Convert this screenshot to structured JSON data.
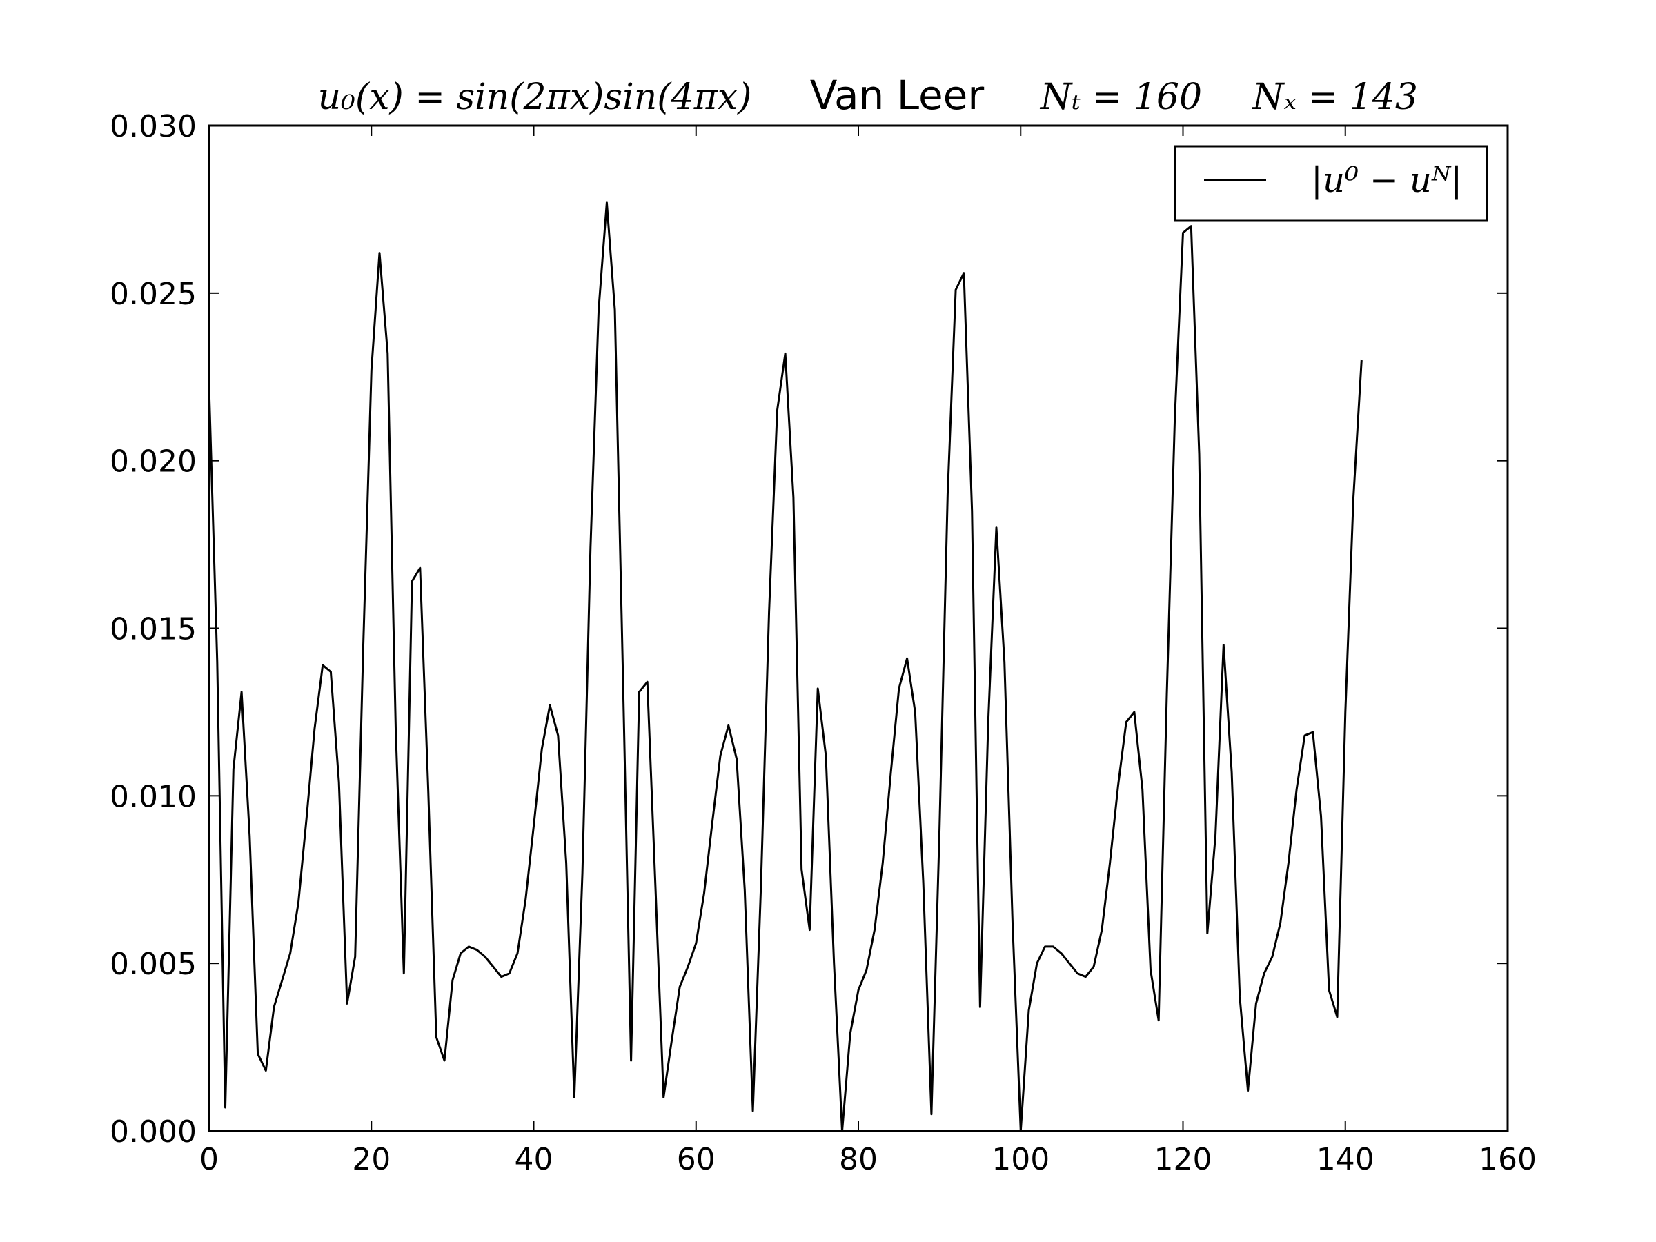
{
  "chart_data": {
    "type": "line",
    "title": {
      "left": "u₀(x) = sin(2πx)sin(4πx)",
      "center": "Van Leer",
      "nt": "Nₜ = 160",
      "nx": "Nₓ = 143"
    },
    "xlabel": "",
    "ylabel": "",
    "xlim": [
      0,
      160
    ],
    "ylim": [
      0,
      0.03
    ],
    "x_ticks": [
      "0",
      "20",
      "40",
      "60",
      "80",
      "100",
      "120",
      "140",
      "160"
    ],
    "y_ticks": [
      "0.000",
      "0.005",
      "0.010",
      "0.015",
      "0.020",
      "0.025",
      "0.030"
    ],
    "grid": false,
    "legend_position": "top-right",
    "series": [
      {
        "name": "|u⁰ − uᴺ|",
        "color": "#000000",
        "x": [
          0,
          1,
          2,
          3,
          4,
          5,
          6,
          7,
          8,
          9,
          10,
          11,
          12,
          13,
          14,
          15,
          16,
          17,
          18,
          19,
          20,
          21,
          22,
          23,
          24,
          25,
          26,
          27,
          28,
          29,
          30,
          31,
          32,
          33,
          34,
          35,
          36,
          37,
          38,
          39,
          40,
          41,
          42,
          43,
          44,
          45,
          46,
          47,
          48,
          49,
          50,
          51,
          52,
          53,
          54,
          55,
          56,
          57,
          58,
          59,
          60,
          61,
          62,
          63,
          64,
          65,
          66,
          67,
          68,
          69,
          70,
          71,
          72,
          73,
          74,
          75,
          76,
          77,
          78,
          79,
          80,
          81,
          82,
          83,
          84,
          85,
          86,
          87,
          88,
          89,
          90,
          91,
          92,
          93,
          94,
          95,
          96,
          97,
          98,
          99,
          100,
          101,
          102,
          103,
          104,
          105,
          106,
          107,
          108,
          109,
          110,
          111,
          112,
          113,
          114,
          115,
          116,
          117,
          118,
          119,
          120,
          121,
          122,
          123,
          124,
          125,
          126,
          127,
          128,
          129,
          130,
          131,
          132,
          133,
          134,
          135,
          136,
          137,
          138,
          139,
          140,
          141,
          142
        ],
        "y": [
          0.0222,
          0.014,
          0.0007,
          0.0108,
          0.0131,
          0.0088,
          0.0023,
          0.0018,
          0.0037,
          0.0045,
          0.0053,
          0.0068,
          0.0093,
          0.012,
          0.0139,
          0.0137,
          0.0104,
          0.0038,
          0.0052,
          0.0145,
          0.0227,
          0.0262,
          0.0232,
          0.012,
          0.0047,
          0.0164,
          0.0168,
          0.0102,
          0.0028,
          0.0021,
          0.0045,
          0.0053,
          0.0055,
          0.0054,
          0.0052,
          0.0049,
          0.0046,
          0.0047,
          0.0053,
          0.0069,
          0.0091,
          0.0114,
          0.0127,
          0.0118,
          0.008,
          0.001,
          0.0077,
          0.0174,
          0.0245,
          0.0277,
          0.0245,
          0.0135,
          0.0021,
          0.0131,
          0.0134,
          0.0073,
          0.001,
          0.0027,
          0.0043,
          0.0049,
          0.0056,
          0.0071,
          0.0092,
          0.0112,
          0.0121,
          0.0111,
          0.0072,
          0.0006,
          0.0073,
          0.0155,
          0.0215,
          0.0232,
          0.0189,
          0.0078,
          0.006,
          0.0132,
          0.0112,
          0.005,
          0.0,
          0.0029,
          0.0042,
          0.0048,
          0.006,
          0.008,
          0.0107,
          0.0132,
          0.0141,
          0.0125,
          0.0074,
          0.0005,
          0.009,
          0.019,
          0.0251,
          0.0256,
          0.0185,
          0.0037,
          0.0122,
          0.018,
          0.014,
          0.0062,
          0.0,
          0.0036,
          0.005,
          0.0055,
          0.0055,
          0.0053,
          0.005,
          0.0047,
          0.0046,
          0.0049,
          0.006,
          0.008,
          0.0103,
          0.0122,
          0.0125,
          0.0102,
          0.0048,
          0.0033,
          0.013,
          0.0213,
          0.0268,
          0.027,
          0.0202,
          0.0059,
          0.0088,
          0.0145,
          0.0107,
          0.004,
          0.0012,
          0.0038,
          0.0047,
          0.0052,
          0.0062,
          0.008,
          0.0102,
          0.0118,
          0.0119,
          0.0094,
          0.0042,
          0.0034,
          0.0125,
          0.0189,
          0.023
        ]
      }
    ]
  }
}
